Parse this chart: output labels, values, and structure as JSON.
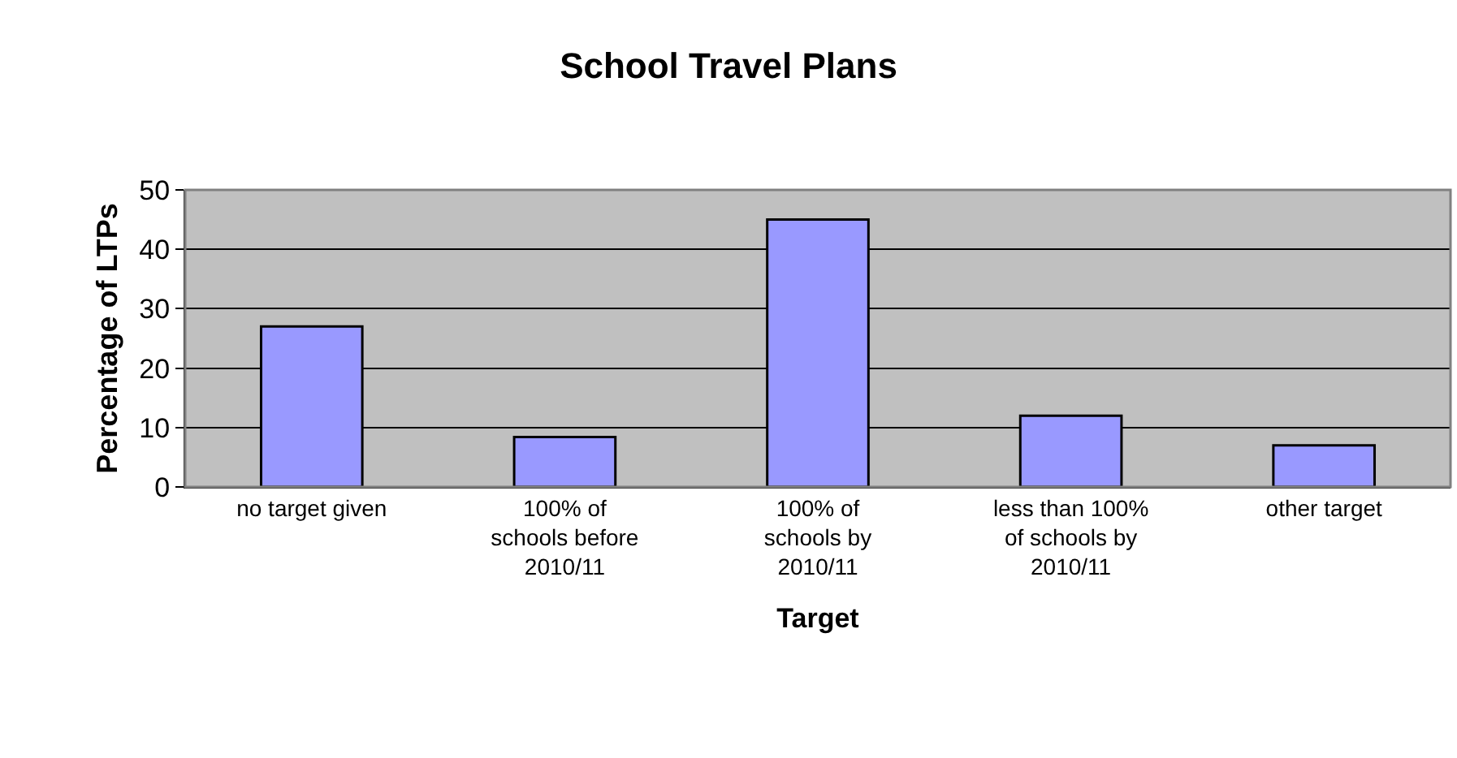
{
  "chart_data": {
    "type": "bar",
    "title": "School Travel Plans",
    "xlabel": "Target",
    "ylabel": "Percentage of LTPs",
    "categories": [
      "no target given",
      "100% of\nschools before\n2010/11",
      "100% of\nschools by\n2010/11",
      "less than 100%\nof schools by\n2010/11",
      "other target"
    ],
    "values": [
      27,
      8.4,
      45,
      12,
      7
    ],
    "color": "#9999ff",
    "ylim": [
      0,
      50
    ],
    "yticks": [
      0,
      10,
      20,
      30,
      40,
      50
    ],
    "grid": "y"
  }
}
